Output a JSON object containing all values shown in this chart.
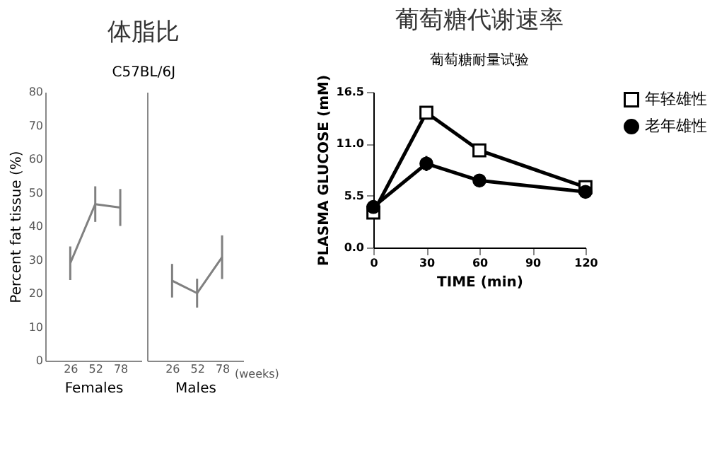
{
  "chart_data": [
    {
      "type": "line",
      "title": "体脂比",
      "subtitle": "C57BL/6J",
      "xlabel": "Females",
      "ylabel": "Percent fat tissue (%)",
      "x": [
        26,
        52,
        78
      ],
      "xlim": [
        0,
        100
      ],
      "xticks": [
        26,
        52,
        78
      ],
      "ylim": [
        0,
        80
      ],
      "yticks": [
        0,
        10,
        20,
        30,
        40,
        50,
        60,
        70,
        80
      ],
      "grid": false,
      "marker": "none",
      "series": [
        {
          "color": "#808080",
          "values": [
            29.0,
            46.6,
            45.6
          ],
          "errors": [
            5,
            5.3,
            5.5
          ]
        }
      ]
    },
    {
      "type": "line",
      "xlabel": "Males",
      "x": [
        26,
        52,
        78
      ],
      "xlim": [
        0,
        100
      ],
      "xticks": [
        26,
        52,
        78
      ],
      "ylim": [
        0,
        80
      ],
      "tick_labels": "x",
      "grid": false,
      "marker": "none",
      "annotations": [
        "(weeks)"
      ],
      "series": [
        {
          "color": "#808080",
          "values": [
            23.8,
            20.1,
            30.8
          ],
          "errors": [
            5,
            4.3,
            6.5
          ]
        }
      ]
    },
    {
      "type": "line",
      "title": "葡萄糖代谢速率",
      "subtitle": "葡萄糖耐量试验",
      "xlabel": "TIME (min)",
      "ylabel": "PLASMA GLUCOSE (mM)",
      "x": [
        0,
        30,
        60,
        120
      ],
      "xlim": [
        0,
        120
      ],
      "xticks": [
        0,
        30,
        60,
        90,
        120
      ],
      "ylim": [
        0,
        16.5
      ],
      "yticks": [
        {
          "value": 0,
          "label": "0.0"
        },
        {
          "value": 5.5,
          "label": "5.5"
        },
        {
          "value": 11,
          "label": "11.0"
        },
        {
          "value": 16.5,
          "label": "16.5"
        }
      ],
      "grid": false,
      "legend": "right",
      "series": [
        {
          "name": "年轻雄性",
          "color": "#000000",
          "marker": "square",
          "values": [
            3.7,
            14.3,
            10.3,
            6.4
          ],
          "errors": [
            0.3,
            0.6,
            0.4,
            0.2
          ]
        },
        {
          "name": "老年雄性",
          "color": "#000000",
          "marker": "circle",
          "values": [
            4.3,
            8.9,
            7.1,
            5.9
          ],
          "errors": [
            0.3,
            0.8,
            0.5,
            0.2
          ]
        }
      ]
    }
  ]
}
